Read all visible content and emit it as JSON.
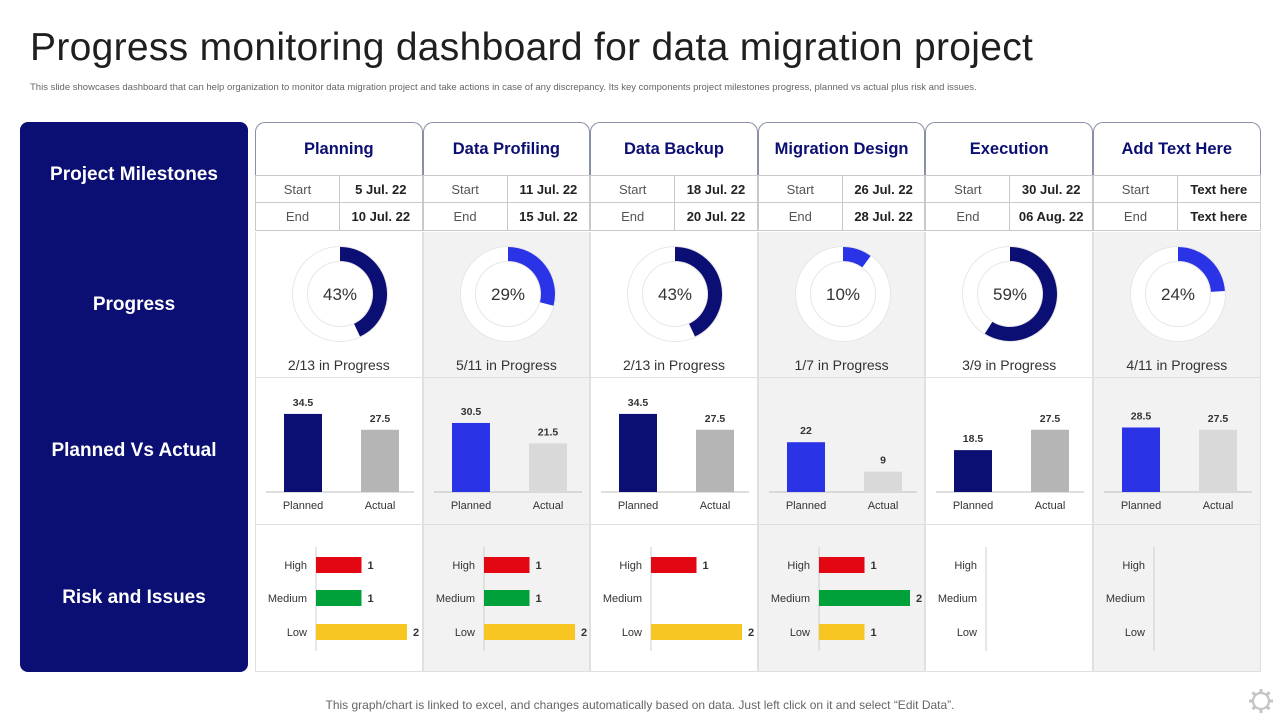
{
  "title": "Progress monitoring dashboard for data migration project",
  "subtitle": "This slide showcases dashboard that can help organization to monitor data migration project and take actions in case of any discrepancy. Its key components project milestones progress, planned vs actual plus risk and issues.",
  "row_labels": {
    "milestones": "Project Milestones",
    "progress": "Progress",
    "planned_vs_actual": "Planned Vs Actual",
    "risk": "Risk and Issues"
  },
  "labels": {
    "start": "Start",
    "end": "End",
    "planned": "Planned",
    "actual": "Actual",
    "high": "High",
    "medium": "Medium",
    "low": "Low"
  },
  "phases": [
    {
      "name": "Planning",
      "start": "5 Jul. 22",
      "end": "10 Jul. 22",
      "progress_text": "2/13 in Progress"
    },
    {
      "name": "Data Profiling",
      "start": "11 Jul. 22",
      "end": "15 Jul. 22",
      "progress_text": "5/11 in Progress"
    },
    {
      "name": "Data Backup",
      "start": "18 Jul. 22",
      "end": "20 Jul. 22",
      "progress_text": "2/13 in Progress"
    },
    {
      "name": "Migration Design",
      "start": "26 Jul. 22",
      "end": "28 Jul. 22",
      "progress_text": "1/7 in Progress"
    },
    {
      "name": "Execution",
      "start": "30 Jul. 22",
      "end": "06 Aug. 22",
      "progress_text": "3/9 in Progress"
    },
    {
      "name": "Add Text Here",
      "start": "Text here",
      "end": "Text here",
      "progress_text": "4/11 in Progress"
    }
  ],
  "chart_data": [
    {
      "type": "pie",
      "chart": "progress",
      "categories": [
        "Planning",
        "Data Profiling",
        "Data Backup",
        "Migration Design",
        "Execution",
        "Add Text Here"
      ],
      "values": [
        43,
        29,
        43,
        10,
        59,
        24
      ],
      "value_labels": [
        "43%",
        "29%",
        "43%",
        "10%",
        "59%",
        "24%"
      ],
      "colors": [
        "#0b0e72",
        "#2a33e6",
        "#0b0e72",
        "#2a33e6",
        "#0b0e72",
        "#2a33e6"
      ]
    },
    {
      "type": "bar",
      "chart": "planned_vs_actual",
      "categories": [
        "Planning",
        "Data Profiling",
        "Data Backup",
        "Migration Design",
        "Execution",
        "Add Text Here"
      ],
      "series": [
        {
          "name": "Planned",
          "values": [
            34.5,
            30.5,
            34.5,
            22,
            18.5,
            28.5
          ]
        },
        {
          "name": "Actual",
          "values": [
            27.5,
            21.5,
            27.5,
            9,
            27.5,
            27.5
          ]
        }
      ],
      "colors": {
        "planned_dark": "#0b0e72",
        "planned_bright": "#2a33e6",
        "actual_mid": "#b5b5b5",
        "actual_light": "#d9d9d9"
      },
      "ylim": [
        0,
        38
      ]
    },
    {
      "type": "bar",
      "chart": "risk_and_issues",
      "orientation": "horizontal",
      "categories": [
        "Planning",
        "Data Profiling",
        "Data Backup",
        "Migration Design",
        "Execution",
        "Add Text Here"
      ],
      "series": [
        {
          "name": "High",
          "values": [
            1,
            1,
            1,
            1,
            null,
            null
          ]
        },
        {
          "name": "Medium",
          "values": [
            1,
            1,
            null,
            2,
            null,
            null
          ]
        },
        {
          "name": "Low",
          "values": [
            2,
            2,
            2,
            1,
            null,
            null
          ]
        }
      ],
      "colors": {
        "High": "#e30613",
        "Medium": "#00a13a",
        "Low": "#f7c623"
      },
      "xlim": [
        0,
        2
      ]
    }
  ],
  "footer": "This graph/chart is linked to excel, and changes automatically based on data. Just left click on it and select “Edit Data”.",
  "icons": {
    "corner": "gear-icon"
  }
}
